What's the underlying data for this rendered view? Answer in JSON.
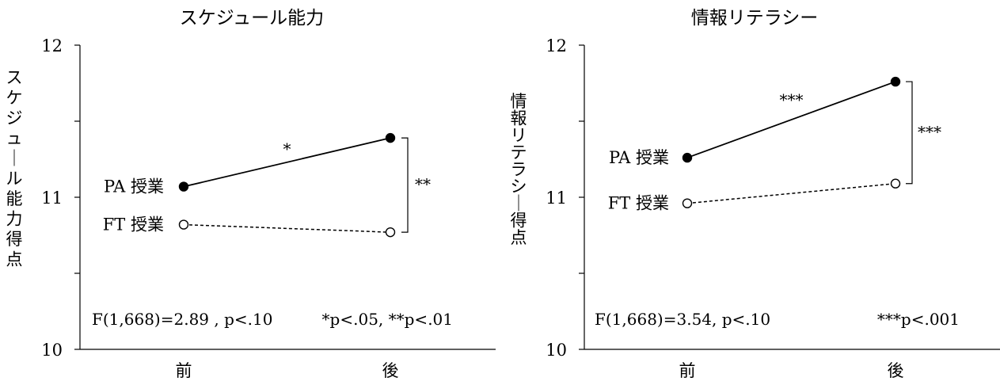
{
  "chart_data": [
    {
      "type": "line",
      "title": "スケジュール能力",
      "ylabel": "スケジュール能力得点",
      "xlabel": "",
      "categories": [
        "前",
        "後"
      ],
      "ylim": [
        10,
        12
      ],
      "yticks": [
        "10",
        "11",
        "12"
      ],
      "grid": false,
      "series": [
        {
          "name": "PA 授業",
          "values": [
            11.07,
            11.39
          ],
          "marker": "filled-circle",
          "line": "solid"
        },
        {
          "name": "FT 授業",
          "values": [
            10.82,
            10.77
          ],
          "marker": "open-circle",
          "line": "dashed"
        }
      ],
      "slope_annotation": "*",
      "bracket_annotation": "**",
      "note_left": "F(1,668)=2.89 , p<.10",
      "note_right": "*p<.05, **p<.01"
    },
    {
      "type": "line",
      "title": "情報リテラシー",
      "ylabel": "情報リテラシー得点",
      "xlabel": "",
      "categories": [
        "前",
        "後"
      ],
      "ylim": [
        10,
        12
      ],
      "yticks": [
        "10",
        "11",
        "12"
      ],
      "grid": false,
      "series": [
        {
          "name": "PA 授業",
          "values": [
            11.26,
            11.76
          ],
          "marker": "filled-circle",
          "line": "solid"
        },
        {
          "name": "FT 授業",
          "values": [
            10.96,
            11.09
          ],
          "marker": "open-circle",
          "line": "dashed"
        }
      ],
      "slope_annotation": "***",
      "bracket_annotation": "***",
      "note_left": "F(1,668)=3.54, p<.10",
      "note_right": "***p<.001"
    }
  ]
}
